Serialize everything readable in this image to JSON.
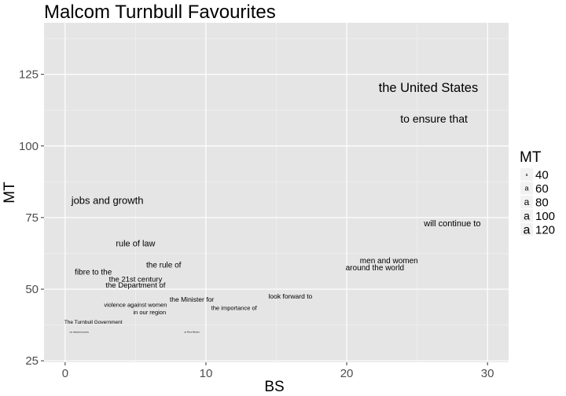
{
  "chart_data": {
    "type": "scatter",
    "title": "Malcom Turnbull Favourites",
    "xlabel": "BS",
    "ylabel": "MT",
    "xlim": [
      -1.5,
      31.5
    ],
    "ylim": [
      24.5,
      143
    ],
    "x_ticks": [
      0,
      10,
      20,
      30
    ],
    "y_ticks": [
      25,
      50,
      75,
      100,
      125
    ],
    "grid": true,
    "size_variable": "MT",
    "legend": {
      "title": "MT",
      "position": "right",
      "entries": [
        {
          "label": "40",
          "value": 40,
          "glyph": "a"
        },
        {
          "label": "60",
          "value": 60,
          "glyph": "a"
        },
        {
          "label": "80",
          "value": 80,
          "glyph": "a"
        },
        {
          "label": "100",
          "value": 100,
          "glyph": "a"
        },
        {
          "label": "120",
          "value": 120,
          "glyph": "a"
        }
      ]
    },
    "points": [
      {
        "label": "the United States",
        "x": 25.8,
        "y": 120.5,
        "size": 120.5
      },
      {
        "label": "to ensure that",
        "x": 26.2,
        "y": 109.5,
        "size": 109.5
      },
      {
        "label": "jobs and growth",
        "x": 3.0,
        "y": 81,
        "size": 81
      },
      {
        "label": "will continue to",
        "x": 27.5,
        "y": 73,
        "size": 73
      },
      {
        "label": "rule of law",
        "x": 5.0,
        "y": 66,
        "size": 66
      },
      {
        "label": "men and women",
        "x": 23.0,
        "y": 60,
        "size": 60
      },
      {
        "label": "the rule of",
        "x": 7.0,
        "y": 58.5,
        "size": 58.5
      },
      {
        "label": "around the world",
        "x": 22.0,
        "y": 57.5,
        "size": 57.5
      },
      {
        "label": "fibre to the",
        "x": 2.0,
        "y": 56,
        "size": 56
      },
      {
        "label": "the 21st century",
        "x": 5.0,
        "y": 53.5,
        "size": 53.5
      },
      {
        "label": "the Department of",
        "x": 5.0,
        "y": 51.5,
        "size": 51.5
      },
      {
        "label": "look forward to",
        "x": 16.0,
        "y": 47.5,
        "size": 47.5
      },
      {
        "label": "the Minister for",
        "x": 9.0,
        "y": 46.5,
        "size": 46.5
      },
      {
        "label": "violence against women",
        "x": 5.0,
        "y": 44.5,
        "size": 44.5
      },
      {
        "label": "the importance of",
        "x": 12.0,
        "y": 43.5,
        "size": 43.5
      },
      {
        "label": "in our region",
        "x": 6.0,
        "y": 42,
        "size": 42
      },
      {
        "label": "The Turnbull Government",
        "x": 2.0,
        "y": 38.5,
        "size": 38.5
      },
      {
        "label": "our national economic",
        "x": 1.0,
        "y": 35,
        "size": 35
      },
      {
        "label": "as Prime Minister",
        "x": 9.0,
        "y": 35,
        "size": 35
      }
    ]
  }
}
